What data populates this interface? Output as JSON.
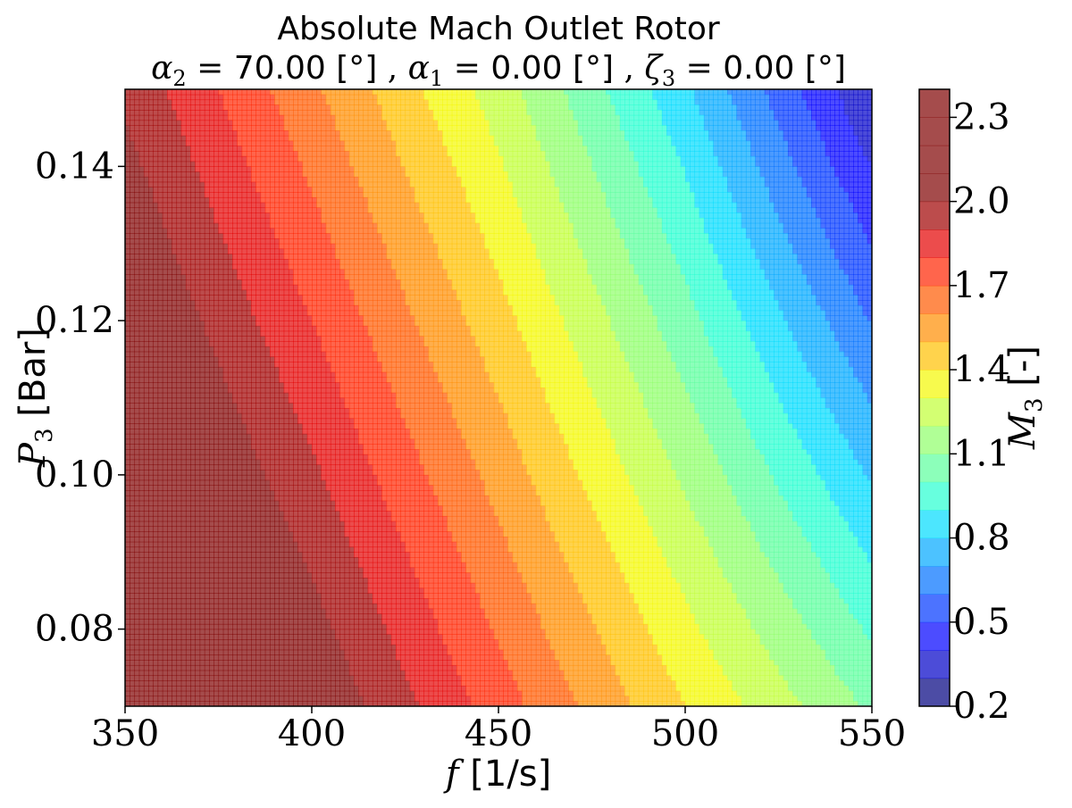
{
  "chart_data": {
    "type": "contourf",
    "title": "Absolute Mach Outlet Rotor",
    "subtitle_parts": {
      "alpha2_sym": "α",
      "alpha2_sub": "2",
      "alpha2_val": "70.00",
      "alpha1_sym": "α",
      "alpha1_sub": "1",
      "alpha1_val": "0.00",
      "zeta3_sym": "ζ",
      "zeta3_sub": "3",
      "zeta3_val": "0.00",
      "unit": "[°]"
    },
    "xlabel_sym": "f",
    "xlabel_unit": "[1/s]",
    "ylabel_sym": "P",
    "ylabel_sub": "3",
    "ylabel_unit": "[Bar]",
    "colorbar_label_sym": "M",
    "colorbar_label_sub": "3",
    "colorbar_label_unit": "[-]",
    "xlim": [
      350,
      550
    ],
    "ylim": [
      0.07,
      0.15
    ],
    "xticks": [
      "350",
      "400",
      "450",
      "500",
      "550"
    ],
    "xtick_values": [
      350,
      400,
      450,
      500,
      550
    ],
    "yticks": [
      "0.08",
      "0.10",
      "0.12",
      "0.14"
    ],
    "ytick_values": [
      0.08,
      0.1,
      0.12,
      0.14
    ],
    "levels": [
      0.2,
      0.3,
      0.4,
      0.5,
      0.6,
      0.7,
      0.8,
      0.9,
      1.0,
      1.1,
      1.2,
      1.3,
      1.4,
      1.5,
      1.6,
      1.7,
      1.8,
      1.9,
      2.0,
      2.1,
      2.2,
      2.3,
      2.4
    ],
    "colorbar_ticks": [
      "0.2",
      "0.5",
      "0.8",
      "1.1",
      "1.4",
      "1.7",
      "2.0",
      "2.3"
    ],
    "colorbar_tick_values": [
      0.2,
      0.5,
      0.8,
      1.1,
      1.4,
      1.7,
      2.0,
      2.3
    ],
    "colormap": "jet",
    "alpha": 0.7,
    "grid": false,
    "level_colors": [
      "#00007f",
      "#0000c8",
      "#0000ff",
      "#0038ff",
      "#0070ff",
      "#00a8ff",
      "#00dcfe",
      "#27ffd0",
      "#5bff9c",
      "#8eff69",
      "#c1ff36",
      "#f4f802",
      "#ffc100",
      "#ff8d00",
      "#ff5a00",
      "#ff2400",
      "#e40000",
      "#9f0000",
      "#7f0000",
      "#7f0000",
      "#7f0000",
      "#7f0000"
    ],
    "field_samples": {
      "f": [
        350,
        400,
        450,
        500,
        550
      ],
      "P3_at_f": [
        0.07,
        0.15
      ],
      "M3_at_P3_0_07": [
        2.4,
        2.1,
        1.75,
        1.4,
        1.08
      ],
      "M3_at_P3_0_15": [
        1.98,
        1.62,
        1.25,
        0.82,
        0.3
      ]
    }
  }
}
